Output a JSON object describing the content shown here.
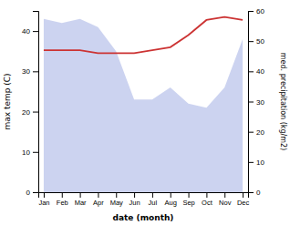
{
  "chart_data": {
    "type": "line",
    "xlabel": "date (month)",
    "ylabel": "max temp (C)",
    "y2label": "med. precipitation (kg/m2)",
    "categories": [
      "Jan",
      "Feb",
      "Mar",
      "Apr",
      "May",
      "Jun",
      "Jul",
      "Aug",
      "Sep",
      "Oct",
      "Nov",
      "Dec"
    ],
    "series": [
      {
        "type": "area",
        "color": "#b0bce8",
        "values": [
          43,
          42,
          43,
          41,
          35,
          23,
          23,
          26,
          22,
          21,
          26,
          38
        ]
      },
      {
        "type": "line",
        "color": "#cc3333",
        "axis": "y2",
        "values": [
          47,
          47,
          47,
          46,
          46,
          46,
          47,
          48,
          52,
          57,
          58,
          57
        ]
      }
    ],
    "ylim": [
      0,
      45
    ],
    "yticks": [
      0,
      10,
      20,
      30,
      40
    ],
    "y2lim": [
      0,
      60
    ],
    "y2ticks": [
      0,
      10,
      20,
      30,
      40,
      50,
      60
    ]
  }
}
